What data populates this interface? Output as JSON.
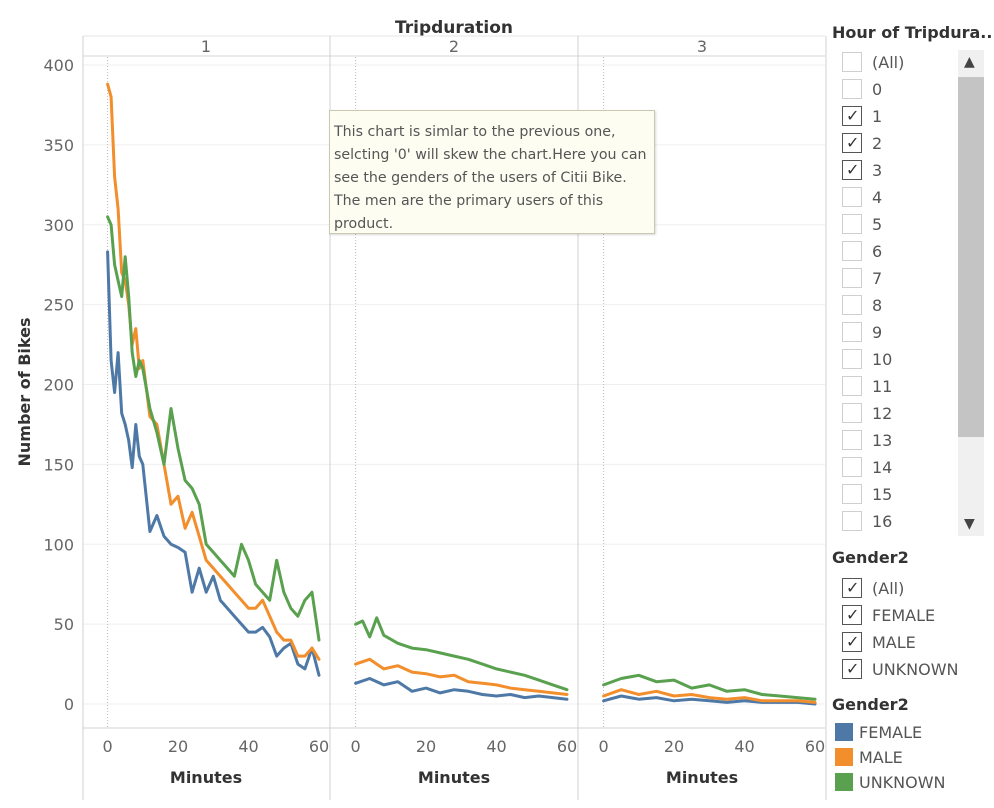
{
  "chart_data": {
    "type": "line",
    "column_header": "Tripduration",
    "panels": [
      "1",
      "2",
      "3"
    ],
    "xlabel": "Minutes",
    "ylabel": "Number of Bikes",
    "x_ticks": [
      0,
      20,
      40,
      60
    ],
    "y_ticks": [
      0,
      50,
      100,
      150,
      200,
      250,
      300,
      350,
      400
    ],
    "xlim": [
      -3,
      60
    ],
    "ylim": [
      -15,
      405
    ],
    "grid": true,
    "legend_placement": "right",
    "series": [
      {
        "name": "FEMALE",
        "color": "#4e79a7",
        "panels": [
          {
            "x": [
              0,
              1,
              2,
              3,
              4,
              5,
              6,
              7,
              8,
              9,
              10,
              12,
              14,
              16,
              18,
              20,
              22,
              24,
              26,
              28,
              30,
              32,
              34,
              36,
              38,
              40,
              42,
              44,
              46,
              48,
              50,
              52,
              54,
              56,
              58,
              60
            ],
            "y": [
              283,
              215,
              195,
              220,
              182,
              175,
              165,
              148,
              175,
              155,
              150,
              108,
              118,
              105,
              100,
              98,
              95,
              70,
              85,
              70,
              80,
              65,
              60,
              55,
              50,
              45,
              45,
              48,
              42,
              30,
              35,
              38,
              25,
              22,
              35,
              18
            ]
          },
          {
            "x": [
              0,
              4,
              8,
              12,
              16,
              20,
              24,
              28,
              32,
              36,
              40,
              44,
              48,
              52,
              56,
              60
            ],
            "y": [
              13,
              16,
              12,
              14,
              8,
              10,
              7,
              9,
              8,
              6,
              5,
              6,
              4,
              5,
              4,
              3
            ]
          },
          {
            "x": [
              0,
              5,
              10,
              15,
              20,
              25,
              30,
              35,
              40,
              45,
              50,
              55,
              60
            ],
            "y": [
              2,
              5,
              3,
              4,
              2,
              3,
              2,
              1,
              2,
              1,
              1,
              1,
              0
            ]
          }
        ]
      },
      {
        "name": "MALE",
        "color": "#f28e2b",
        "panels": [
          {
            "x": [
              0,
              1,
              2,
              3,
              4,
              5,
              6,
              7,
              8,
              9,
              10,
              12,
              14,
              16,
              18,
              20,
              22,
              24,
              26,
              28,
              30,
              32,
              34,
              36,
              38,
              40,
              42,
              44,
              46,
              48,
              50,
              52,
              54,
              56,
              58,
              60
            ],
            "y": [
              388,
              380,
              330,
              310,
              270,
              265,
              250,
              225,
              235,
              210,
              215,
              180,
              175,
              150,
              125,
              130,
              110,
              120,
              105,
              90,
              85,
              80,
              75,
              70,
              65,
              60,
              60,
              65,
              55,
              45,
              40,
              40,
              30,
              30,
              35,
              28
            ]
          },
          {
            "x": [
              0,
              4,
              8,
              12,
              16,
              20,
              24,
              28,
              32,
              36,
              40,
              44,
              48,
              52,
              56,
              60
            ],
            "y": [
              25,
              28,
              22,
              24,
              20,
              19,
              17,
              18,
              14,
              13,
              12,
              10,
              9,
              8,
              7,
              6
            ]
          },
          {
            "x": [
              0,
              5,
              10,
              15,
              20,
              25,
              30,
              35,
              40,
              45,
              50,
              55,
              60
            ],
            "y": [
              5,
              9,
              6,
              8,
              5,
              6,
              4,
              3,
              4,
              2,
              2,
              2,
              1
            ]
          }
        ]
      },
      {
        "name": "UNKNOWN",
        "color": "#59a14f",
        "panels": [
          {
            "x": [
              0,
              1,
              2,
              3,
              4,
              5,
              6,
              7,
              8,
              9,
              10,
              12,
              14,
              16,
              18,
              20,
              22,
              24,
              26,
              28,
              30,
              32,
              34,
              36,
              38,
              40,
              42,
              44,
              46,
              48,
              50,
              52,
              54,
              56,
              58,
              60
            ],
            "y": [
              305,
              300,
              275,
              265,
              255,
              280,
              255,
              220,
              205,
              215,
              210,
              185,
              170,
              150,
              185,
              160,
              140,
              135,
              125,
              100,
              95,
              90,
              85,
              80,
              100,
              90,
              75,
              70,
              65,
              90,
              70,
              60,
              55,
              65,
              70,
              40
            ]
          },
          {
            "x": [
              0,
              2,
              4,
              6,
              8,
              12,
              16,
              20,
              24,
              28,
              32,
              36,
              40,
              44,
              48,
              52,
              56,
              60
            ],
            "y": [
              50,
              52,
              42,
              54,
              43,
              38,
              35,
              34,
              32,
              30,
              28,
              25,
              22,
              20,
              18,
              15,
              12,
              9
            ]
          },
          {
            "x": [
              0,
              5,
              10,
              15,
              20,
              25,
              30,
              35,
              40,
              45,
              50,
              55,
              60
            ],
            "y": [
              12,
              16,
              18,
              14,
              15,
              10,
              12,
              8,
              9,
              6,
              5,
              4,
              3
            ]
          }
        ]
      }
    ]
  },
  "annotation": {
    "lines": [
      "This chart is simlar to the previous one,",
      "selcting '0' will skew the chart.Here you can",
      "see the genders of the users of Citii Bike.",
      "The men are the primary users of this",
      "product."
    ]
  },
  "hour_filter": {
    "title": "Hour of Tripdura..",
    "items": [
      {
        "label": "(All)",
        "checked": false
      },
      {
        "label": "0",
        "checked": false
      },
      {
        "label": "1",
        "checked": true
      },
      {
        "label": "2",
        "checked": true
      },
      {
        "label": "3",
        "checked": true
      },
      {
        "label": "4",
        "checked": false
      },
      {
        "label": "5",
        "checked": false
      },
      {
        "label": "6",
        "checked": false
      },
      {
        "label": "7",
        "checked": false
      },
      {
        "label": "8",
        "checked": false
      },
      {
        "label": "9",
        "checked": false
      },
      {
        "label": "10",
        "checked": false
      },
      {
        "label": "11",
        "checked": false
      },
      {
        "label": "12",
        "checked": false
      },
      {
        "label": "13",
        "checked": false
      },
      {
        "label": "14",
        "checked": false
      },
      {
        "label": "15",
        "checked": false
      },
      {
        "label": "16",
        "checked": false
      }
    ],
    "scroll_up_icon": "chevron-up-icon",
    "scroll_down_icon": "chevron-down-icon"
  },
  "gender_filter": {
    "title": "Gender2",
    "items": [
      {
        "label": "(All)",
        "checked": true
      },
      {
        "label": "FEMALE",
        "checked": true
      },
      {
        "label": "MALE",
        "checked": true
      },
      {
        "label": "UNKNOWN",
        "checked": true
      }
    ]
  },
  "gender_legend": {
    "title": "Gender2",
    "items": [
      {
        "label": "FEMALE",
        "color": "#4e79a7"
      },
      {
        "label": "MALE",
        "color": "#f28e2b"
      },
      {
        "label": "UNKNOWN",
        "color": "#59a14f"
      }
    ]
  }
}
